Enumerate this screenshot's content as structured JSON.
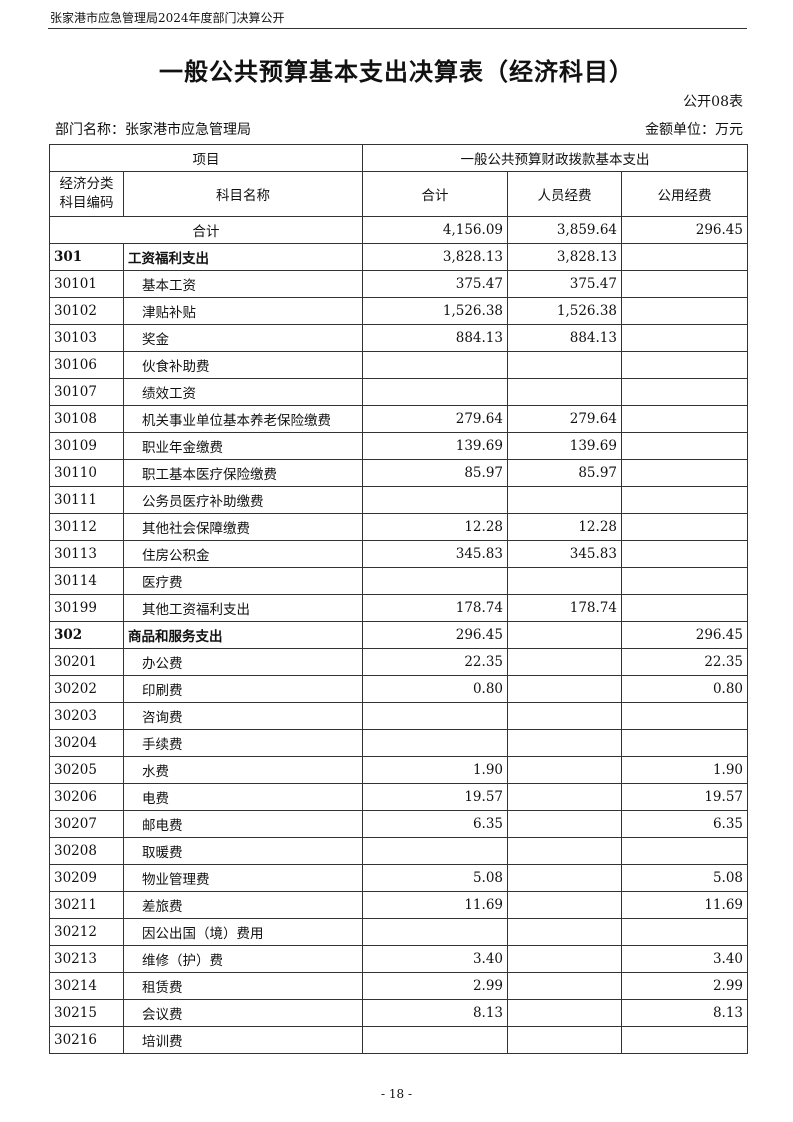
{
  "header": {
    "running_title": "张家港市应急管理局2024年度部门决算公开",
    "title": "一般公共预算基本支出决算表（经济科目）",
    "table_no": "公开08表",
    "department": "部门名称：张家港市应急管理局",
    "unit": "金额单位：万元"
  },
  "table": {
    "head": {
      "item": "项目",
      "group": "一般公共预算财政拨款基本支出",
      "code": "经济分类\n科目编码",
      "name": "科目名称",
      "total": "合计",
      "personnel": "人员经费",
      "public": "公用经费"
    },
    "total_row": {
      "label": "合计",
      "total": "4,156.09",
      "personnel": "3,859.64",
      "public": "296.45"
    },
    "rows": [
      {
        "code": "301",
        "name": "工资福利支出",
        "total": "3,828.13",
        "personnel": "3,828.13",
        "public": null
      },
      {
        "code": "30101",
        "name": "基本工资",
        "total": "375.47",
        "personnel": "375.47",
        "public": null
      },
      {
        "code": "30102",
        "name": "津贴补贴",
        "total": "1,526.38",
        "personnel": "1,526.38",
        "public": null
      },
      {
        "code": "30103",
        "name": "奖金",
        "total": "884.13",
        "personnel": "884.13",
        "public": null
      },
      {
        "code": "30106",
        "name": "伙食补助费",
        "total": null,
        "personnel": null,
        "public": null
      },
      {
        "code": "30107",
        "name": "绩效工资",
        "total": null,
        "personnel": null,
        "public": null
      },
      {
        "code": "30108",
        "name": "机关事业单位基本养老保险缴费",
        "total": "279.64",
        "personnel": "279.64",
        "public": null
      },
      {
        "code": "30109",
        "name": "职业年金缴费",
        "total": "139.69",
        "personnel": "139.69",
        "public": null
      },
      {
        "code": "30110",
        "name": "职工基本医疗保险缴费",
        "total": "85.97",
        "personnel": "85.97",
        "public": null
      },
      {
        "code": "30111",
        "name": "公务员医疗补助缴费",
        "total": null,
        "personnel": null,
        "public": null
      },
      {
        "code": "30112",
        "name": "其他社会保障缴费",
        "total": "12.28",
        "personnel": "12.28",
        "public": null
      },
      {
        "code": "30113",
        "name": "住房公积金",
        "total": "345.83",
        "personnel": "345.83",
        "public": null
      },
      {
        "code": "30114",
        "name": "医疗费",
        "total": null,
        "personnel": null,
        "public": null
      },
      {
        "code": "30199",
        "name": "其他工资福利支出",
        "total": "178.74",
        "personnel": "178.74",
        "public": null
      },
      {
        "code": "302",
        "name": "商品和服务支出",
        "total": "296.45",
        "personnel": null,
        "public": "296.45"
      },
      {
        "code": "30201",
        "name": "办公费",
        "total": "22.35",
        "personnel": null,
        "public": "22.35"
      },
      {
        "code": "30202",
        "name": "印刷费",
        "total": "0.80",
        "personnel": null,
        "public": "0.80"
      },
      {
        "code": "30203",
        "name": "咨询费",
        "total": null,
        "personnel": null,
        "public": null
      },
      {
        "code": "30204",
        "name": "手续费",
        "total": null,
        "personnel": null,
        "public": null
      },
      {
        "code": "30205",
        "name": "水费",
        "total": "1.90",
        "personnel": null,
        "public": "1.90"
      },
      {
        "code": "30206",
        "name": "电费",
        "total": "19.57",
        "personnel": null,
        "public": "19.57"
      },
      {
        "code": "30207",
        "name": "邮电费",
        "total": "6.35",
        "personnel": null,
        "public": "6.35"
      },
      {
        "code": "30208",
        "name": "取暖费",
        "total": null,
        "personnel": null,
        "public": null
      },
      {
        "code": "30209",
        "name": "物业管理费",
        "total": "5.08",
        "personnel": null,
        "public": "5.08"
      },
      {
        "code": "30211",
        "name": "差旅费",
        "total": "11.69",
        "personnel": null,
        "public": "11.69"
      },
      {
        "code": "30212",
        "name": "因公出国（境）费用",
        "total": null,
        "personnel": null,
        "public": null
      },
      {
        "code": "30213",
        "name": "维修（护）费",
        "total": "3.40",
        "personnel": null,
        "public": "3.40"
      },
      {
        "code": "30214",
        "name": "租赁费",
        "total": "2.99",
        "personnel": null,
        "public": "2.99"
      },
      {
        "code": "30215",
        "name": "会议费",
        "total": "8.13",
        "personnel": null,
        "public": "8.13"
      },
      {
        "code": "30216",
        "name": "培训费",
        "total": null,
        "personnel": null,
        "public": null
      }
    ]
  },
  "footer": {
    "page": "- 18 -"
  }
}
